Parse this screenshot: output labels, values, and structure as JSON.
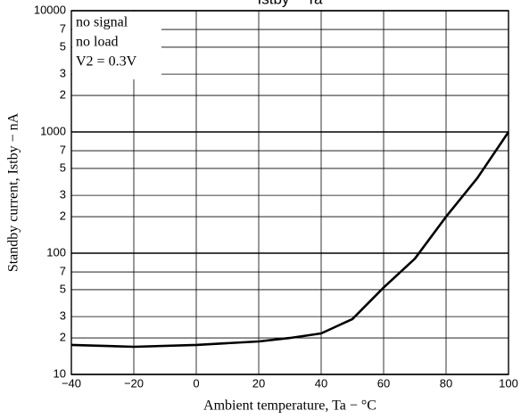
{
  "chart_data": {
    "type": "line",
    "title": "Istby − Ta",
    "x_label": "Ambient temperature, Ta  −  °C",
    "y_label": "Standby current, Istby  −  nA",
    "annotations": [
      "no signal",
      "no load",
      "V2 = 0.3V"
    ],
    "x": [
      -40,
      -20,
      0,
      20,
      30,
      40,
      50,
      60,
      70,
      80,
      90,
      100
    ],
    "values": [
      17.5,
      16.9,
      17.5,
      18.7,
      20,
      21.8,
      28.6,
      52,
      90,
      200,
      416,
      1000
    ],
    "color": "#000000",
    "xlim": [
      -40,
      100
    ],
    "xticks": [
      {
        "value": -40,
        "label": "−40"
      },
      {
        "value": -20,
        "label": "−20"
      },
      0,
      20,
      40,
      60,
      80,
      100
    ],
    "ylim": [
      10,
      10000
    ],
    "yscale": "log",
    "yticks": [
      10,
      {
        "value": 20,
        "label": "2"
      },
      {
        "value": 30,
        "label": "3"
      },
      {
        "value": 50,
        "label": "5"
      },
      {
        "value": 70,
        "label": "7"
      },
      100,
      {
        "value": 200,
        "label": "2"
      },
      {
        "value": 300,
        "label": "3"
      },
      {
        "value": 500,
        "label": "5"
      },
      {
        "value": 700,
        "label": "7"
      },
      1000,
      {
        "value": 2000,
        "label": "2"
      },
      {
        "value": 3000,
        "label": "3"
      },
      {
        "value": 5000,
        "label": "5"
      },
      {
        "value": 7000,
        "label": "7"
      },
      10000
    ],
    "grid": true
  }
}
